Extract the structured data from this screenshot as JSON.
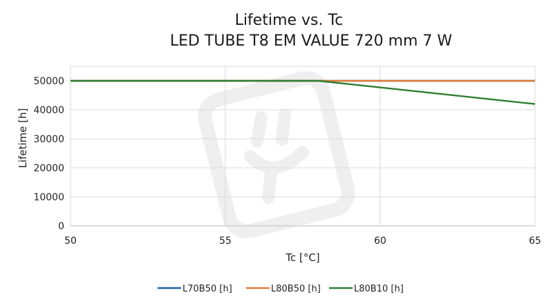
{
  "chart_data": {
    "type": "line",
    "title_lines": [
      "Lifetime vs. Tc",
      "LED TUBE T8 EM VALUE 720 mm 7 W"
    ],
    "xlabel": "Tc [°C]",
    "ylabel": "Lifetime [h]",
    "xlim": [
      50,
      65
    ],
    "ylim": [
      0,
      55000
    ],
    "x_ticks": [
      50,
      55,
      60,
      65
    ],
    "y_ticks": [
      0,
      10000,
      20000,
      30000,
      40000,
      50000
    ],
    "grid": true,
    "legend_position": "bottom",
    "series": [
      {
        "name": "L70B50 [h]",
        "color": "#1f5f9e",
        "x": [
          50,
          58,
          65
        ],
        "y": [
          50000,
          50000,
          50000
        ]
      },
      {
        "name": "L80B50 [h]",
        "color": "#e07b39",
        "x": [
          50,
          58,
          65
        ],
        "y": [
          50000,
          50000,
          50000
        ]
      },
      {
        "name": "L80B10 [h]",
        "color": "#2e7d32",
        "x": [
          50,
          58,
          65
        ],
        "y": [
          50000,
          50000,
          42000
        ]
      }
    ]
  }
}
